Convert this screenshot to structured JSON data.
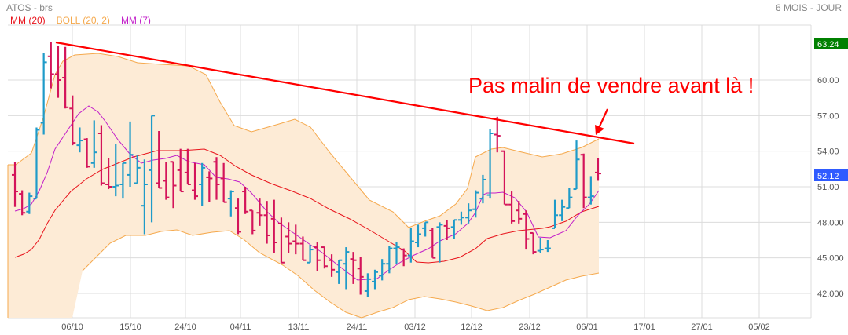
{
  "header": {
    "title": "ATOS - brs",
    "period": "6 MOIS - JOUR"
  },
  "legend": [
    {
      "label": "MM (20)",
      "color": "#e8131b"
    },
    {
      "label": "BOLL (20, 2)",
      "color": "#f5a94d"
    },
    {
      "label": "MM (7)",
      "color": "#c21fc9"
    }
  ],
  "annotation": {
    "text": "Pas malin de vendre avant là !",
    "color": "#ff0000"
  },
  "price_badges": {
    "high": {
      "value": "63.24",
      "color": "#008000"
    },
    "last": {
      "value": "52.12",
      "color": "#2f5bff"
    }
  },
  "chart_data": {
    "type": "ohlc",
    "title": "ATOS - brs",
    "subtitle": "6 MOIS - JOUR",
    "xlabel": "",
    "ylabel": "",
    "ylim": [
      40.0,
      65.0
    ],
    "grid": true,
    "legend_position": "top-left",
    "y_ticks": [
      "42.000",
      "45.000",
      "48.000",
      "51.00",
      "54.00",
      "57.00",
      "60.00"
    ],
    "x_ticks": [
      "06/10",
      "15/10",
      "24/10",
      "04/11",
      "13/11",
      "24/11",
      "03/12",
      "12/12",
      "23/12",
      "06/01",
      "17/01",
      "27/01",
      "05/02"
    ],
    "up_color": "#1f9bc9",
    "down_color": "#d4145a",
    "bars": [
      {
        "o": 52.0,
        "h": 53.1,
        "l": 49.3,
        "c": 50.6
      },
      {
        "o": 50.4,
        "h": 50.7,
        "l": 48.6,
        "c": 48.8
      },
      {
        "o": 48.9,
        "h": 50.5,
        "l": 48.7,
        "c": 50.2
      },
      {
        "o": 50.0,
        "h": 56.0,
        "l": 50.3,
        "c": 55.8
      },
      {
        "o": 56.4,
        "h": 62.3,
        "l": 55.4,
        "c": 61.5
      },
      {
        "o": 62.0,
        "h": 63.24,
        "l": 59.3,
        "c": 60.5
      },
      {
        "o": 60.5,
        "h": 62.9,
        "l": 58.5,
        "c": 60.0
      },
      {
        "o": 60.2,
        "h": 62.8,
        "l": 57.6,
        "c": 57.7
      },
      {
        "o": 57.6,
        "h": 58.7,
        "l": 54.5,
        "c": 54.7
      },
      {
        "o": 54.5,
        "h": 56.0,
        "l": 53.9,
        "c": 54.9
      },
      {
        "o": 55.0,
        "h": 55.1,
        "l": 52.6,
        "c": 52.7
      },
      {
        "o": 53.0,
        "h": 56.6,
        "l": 52.6,
        "c": 53.9
      },
      {
        "o": 55.5,
        "h": 56.2,
        "l": 51.1,
        "c": 51.3
      },
      {
        "o": 51.2,
        "h": 53.4,
        "l": 50.8,
        "c": 51.0
      },
      {
        "o": 51.0,
        "h": 54.6,
        "l": 50.2,
        "c": 51.1
      },
      {
        "o": 51.2,
        "h": 53.0,
        "l": 50.0,
        "c": 53.0
      },
      {
        "o": 52.0,
        "h": 56.5,
        "l": 51.0,
        "c": 53.7
      },
      {
        "o": 51.3,
        "h": 53.7,
        "l": 51.4,
        "c": 52.6
      },
      {
        "o": 49.4,
        "h": 53.3,
        "l": 47.0,
        "c": 51.2
      },
      {
        "o": 52.4,
        "h": 56.9,
        "l": 48.0,
        "c": 57.0
      },
      {
        "o": 51.3,
        "h": 55.7,
        "l": 51.0,
        "c": 50.9
      },
      {
        "o": 51.5,
        "h": 53.1,
        "l": 49.9,
        "c": 50.1
      },
      {
        "o": 53.1,
        "h": 53.0,
        "l": 49.2,
        "c": 51.1
      },
      {
        "o": 52.4,
        "h": 54.2,
        "l": 50.6,
        "c": 50.6
      },
      {
        "o": 52.2,
        "h": 54.2,
        "l": 51.3,
        "c": 51.2
      },
      {
        "o": 50.7,
        "h": 53.0,
        "l": 49.9,
        "c": 50.2
      },
      {
        "o": 51.2,
        "h": 53.0,
        "l": 49.4,
        "c": 52.6
      },
      {
        "o": 51.8,
        "h": 52.3,
        "l": 49.7,
        "c": 51.7
      },
      {
        "o": 53.1,
        "h": 53.5,
        "l": 49.9,
        "c": 51.2
      },
      {
        "o": 51.7,
        "h": 53.0,
        "l": 49.7,
        "c": 49.7
      },
      {
        "o": 50.0,
        "h": 50.7,
        "l": 48.5,
        "c": 50.6
      },
      {
        "o": 49.2,
        "h": 50.0,
        "l": 47.0,
        "c": 47.2
      },
      {
        "o": 50.6,
        "h": 51.0,
        "l": 48.7,
        "c": 48.9
      },
      {
        "o": 49.0,
        "h": 48.8,
        "l": 47.0,
        "c": 47.3
      },
      {
        "o": 48.8,
        "h": 50.0,
        "l": 47.7,
        "c": 48.6
      },
      {
        "o": 48.6,
        "h": 49.8,
        "l": 46.2,
        "c": 46.9
      },
      {
        "o": 48.3,
        "h": 49.9,
        "l": 45.4,
        "c": 46.3
      },
      {
        "o": 47.9,
        "h": 48.4,
        "l": 44.6,
        "c": 44.6
      },
      {
        "o": 46.8,
        "h": 48.0,
        "l": 45.4,
        "c": 46.2
      },
      {
        "o": 46.4,
        "h": 47.8,
        "l": 45.3,
        "c": 46.2
      },
      {
        "o": 46.2,
        "h": 46.8,
        "l": 44.8,
        "c": 44.8
      },
      {
        "o": 44.6,
        "h": 46.1,
        "l": 45.4,
        "c": 45.7
      },
      {
        "o": 45.9,
        "h": 46.3,
        "l": 43.9,
        "c": 44.8
      },
      {
        "o": 45.9,
        "h": 45.6,
        "l": 44.1,
        "c": 44.3
      },
      {
        "o": 44.8,
        "h": 45.3,
        "l": 43.4,
        "c": 44.0
      },
      {
        "o": 43.8,
        "h": 44.8,
        "l": 42.8,
        "c": 44.8
      },
      {
        "o": 44.5,
        "h": 45.9,
        "l": 42.3,
        "c": 45.5
      },
      {
        "o": 44.9,
        "h": 45.5,
        "l": 42.8,
        "c": 44.8
      },
      {
        "o": 44.1,
        "h": 45.1,
        "l": 41.9,
        "c": 43.4
      },
      {
        "o": 42.2,
        "h": 43.7,
        "l": 41.7,
        "c": 43.2
      },
      {
        "o": 43.0,
        "h": 44.0,
        "l": 42.3,
        "c": 43.8
      },
      {
        "o": 43.5,
        "h": 44.9,
        "l": 43.1,
        "c": 44.5
      },
      {
        "o": 44.5,
        "h": 46.0,
        "l": 43.7,
        "c": 45.8
      },
      {
        "o": 45.8,
        "h": 46.3,
        "l": 44.5,
        "c": 45.9
      },
      {
        "o": 45.7,
        "h": 45.8,
        "l": 44.3,
        "c": 45.2
      },
      {
        "o": 45.2,
        "h": 47.5,
        "l": 44.6,
        "c": 46.4
      },
      {
        "o": 46.3,
        "h": 47.8,
        "l": 45.9,
        "c": 47.0
      },
      {
        "o": 47.5,
        "h": 47.0,
        "l": 46.8,
        "c": 48.0
      },
      {
        "o": 47.3,
        "h": 47.5,
        "l": 45.0,
        "c": 45.0
      },
      {
        "o": 47.6,
        "h": 48.0,
        "l": 44.6,
        "c": 47.8
      },
      {
        "o": 47.7,
        "h": 48.2,
        "l": 46.5,
        "c": 47.5
      },
      {
        "o": 47.6,
        "h": 48.2,
        "l": 46.6,
        "c": 48.2
      },
      {
        "o": 48.2,
        "h": 48.9,
        "l": 47.8,
        "c": 48.4
      },
      {
        "o": 48.4,
        "h": 49.6,
        "l": 47.9,
        "c": 49.0
      },
      {
        "o": 49.1,
        "h": 50.7,
        "l": 48.4,
        "c": 50.5
      },
      {
        "o": 50.0,
        "h": 52.0,
        "l": 49.6,
        "c": 51.6
      },
      {
        "o": 50.3,
        "h": 55.9,
        "l": 50.0,
        "c": 55.5
      },
      {
        "o": 55.4,
        "h": 56.9,
        "l": 53.9,
        "c": 55.3
      },
      {
        "o": 54.0,
        "h": 53.8,
        "l": 49.5,
        "c": 49.5
      },
      {
        "o": 49.5,
        "h": 50.6,
        "l": 47.9,
        "c": 48.1
      },
      {
        "o": 49.0,
        "h": 49.8,
        "l": 47.9,
        "c": 48.3
      },
      {
        "o": 48.7,
        "h": 49.0,
        "l": 45.7,
        "c": 46.6
      },
      {
        "o": 47.1,
        "h": 47.0,
        "l": 45.3,
        "c": 45.5
      },
      {
        "o": 45.6,
        "h": 46.7,
        "l": 45.4,
        "c": 45.7
      },
      {
        "o": 45.8,
        "h": 46.5,
        "l": 45.5,
        "c": 45.8
      },
      {
        "o": 47.5,
        "h": 49.9,
        "l": 47.5,
        "c": 48.6
      },
      {
        "o": 48.6,
        "h": 49.9,
        "l": 48.1,
        "c": 49.3
      },
      {
        "o": 49.2,
        "h": 50.9,
        "l": 49.4,
        "c": 50.1
      },
      {
        "o": 50.8,
        "h": 54.9,
        "l": 50.8,
        "c": 53.3
      },
      {
        "o": 53.7,
        "h": 53.8,
        "l": 49.2,
        "c": 50.1
      },
      {
        "o": 50.1,
        "h": 51.9,
        "l": 49.5,
        "c": 50.2
      },
      {
        "o": 52.2,
        "h": 53.4,
        "l": 51.5,
        "c": 52.12
      }
    ],
    "series": [
      {
        "name": "MM (20)",
        "color": "#e8131b"
      },
      {
        "name": "BOLL (20, 2)",
        "color": "#f5a94d"
      },
      {
        "name": "MM (7)",
        "color": "#c21fc9"
      }
    ],
    "trendline": {
      "from": {
        "x": "04/10",
        "y": 63.24
      },
      "to": {
        "x": "14/01",
        "y": 55.2
      },
      "color": "#ff0000"
    },
    "annotations": [
      "Pas malin de vendre avant là !"
    ],
    "last_price": 52.12,
    "high_price": 63.24
  }
}
